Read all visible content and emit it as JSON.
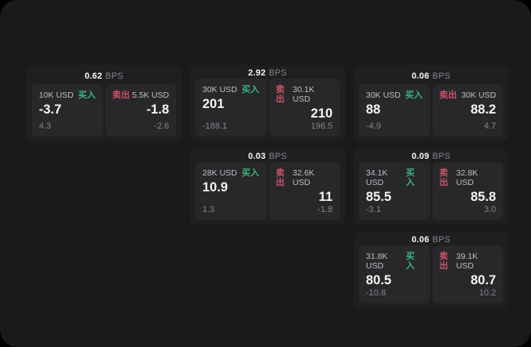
{
  "labels": {
    "bps_suffix": "BPS",
    "buy": "买入",
    "sell": "卖出"
  },
  "colors": {
    "bg": "#000000",
    "surface": "#1a1a1c",
    "card": "#1f1f22",
    "subcard": "#28282b",
    "text": "#f5f5f6",
    "label": "#bfbfc4",
    "muted": "#85858a",
    "buy": "#3eb37c",
    "sell": "#cb5468"
  },
  "cards": [
    {
      "bps": "0.62",
      "buy": {
        "size": "10K USD",
        "value": "-3.7",
        "delta": "4.3"
      },
      "sell": {
        "size": "5.5K USD",
        "value": "-1.8",
        "delta": "-2.6"
      }
    },
    {
      "bps": "2.92",
      "buy": {
        "size": "30K USD",
        "value": "201",
        "delta": "-188.1"
      },
      "sell": {
        "size": "30.1K USD",
        "value": "210",
        "delta": "196.5"
      }
    },
    {
      "bps": "0.06",
      "buy": {
        "size": "30K USD",
        "value": "88",
        "delta": "-4.9"
      },
      "sell": {
        "size": "30K USD",
        "value": "88.2",
        "delta": "4.7"
      }
    },
    {
      "bps": "0.03",
      "buy": {
        "size": "28K USD",
        "value": "10.9",
        "delta": "1.3"
      },
      "sell": {
        "size": "32.6K USD",
        "value": "11",
        "delta": "-1.8"
      }
    },
    {
      "bps": "0.09",
      "buy": {
        "size": "34.1K USD",
        "value": "85.5",
        "delta": "-3.1"
      },
      "sell": {
        "size": "32.8K USD",
        "value": "85.8",
        "delta": "3.0"
      }
    },
    {
      "bps": "0.06",
      "buy": {
        "size": "31.8K USD",
        "value": "80.5",
        "delta": "-10.8"
      },
      "sell": {
        "size": "39.1K USD",
        "value": "80.7",
        "delta": "10.2"
      }
    }
  ]
}
